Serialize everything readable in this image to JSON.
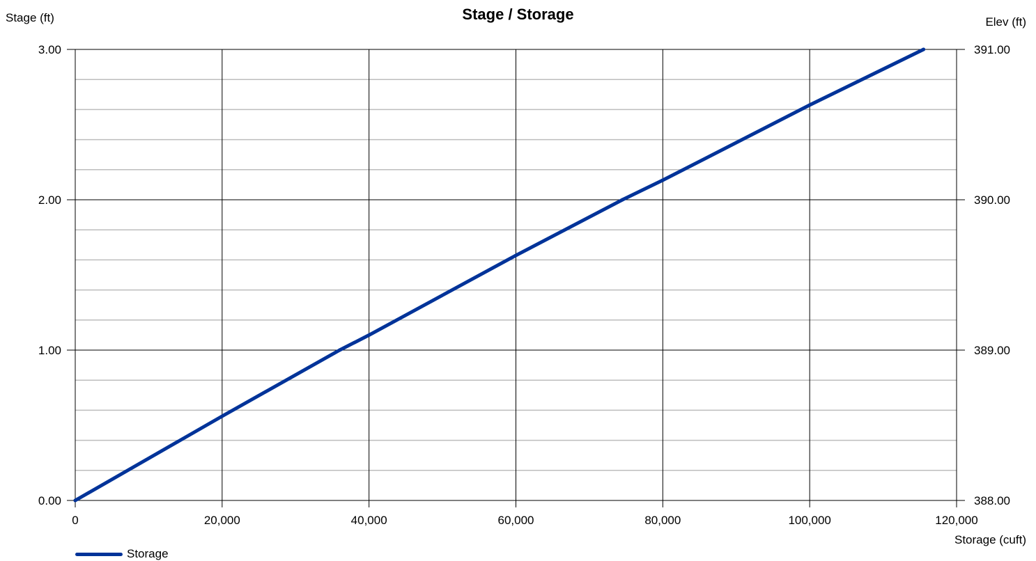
{
  "chart_data": {
    "type": "line",
    "title": "Stage / Storage",
    "xlabel": "Storage (cuft)",
    "ylabel": "Stage (ft)",
    "ylabel_right": "Elev (ft)",
    "xlim": [
      0,
      120000
    ],
    "ylim": [
      0,
      3
    ],
    "ylim_right": [
      388,
      391
    ],
    "x_ticks": [
      "0",
      "20,000",
      "40,000",
      "60,000",
      "80,000",
      "100,000",
      "120,000"
    ],
    "y_ticks": [
      "0.00",
      "1.00",
      "2.00",
      "3.00"
    ],
    "y_ticks_right": [
      "388.00",
      "389.00",
      "390.00",
      "391.00"
    ],
    "grid": true,
    "legend_position": "bottom-left",
    "series": [
      {
        "name": "Storage",
        "color": "#003399",
        "x": [
          0,
          20000,
          36000,
          40000,
          60000,
          74500,
          80000,
          100000,
          115500
        ],
        "y": [
          0,
          0.56,
          1.0,
          1.1,
          1.63,
          2.0,
          2.13,
          2.63,
          3.0
        ]
      }
    ]
  }
}
